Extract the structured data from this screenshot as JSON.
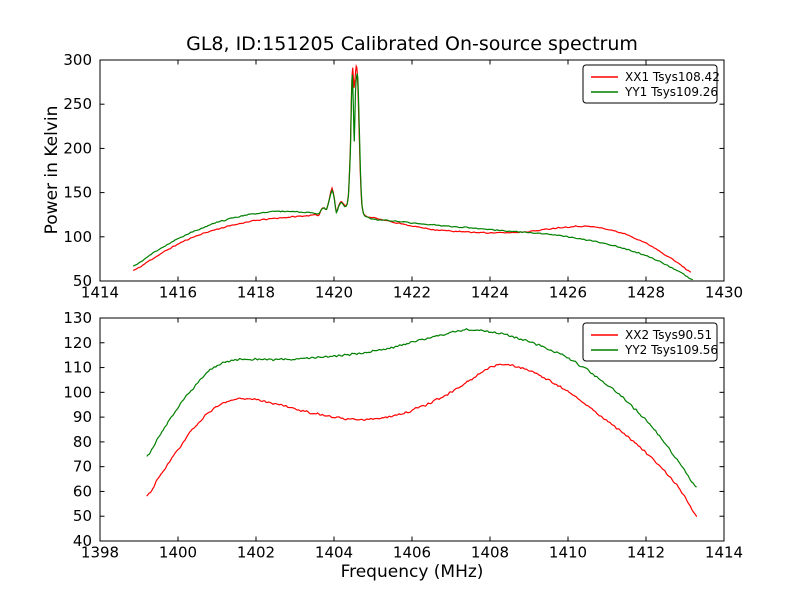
{
  "figure": {
    "background": "#ffffff",
    "axis_color": "#000000"
  },
  "chart_data": [
    {
      "id": "top",
      "type": "line",
      "title": "GL8, ID:151205 Calibrated On-source spectrum",
      "xlabel": "",
      "ylabel": "Power in Kelvin",
      "xlim": [
        1414,
        1430
      ],
      "ylim": [
        50,
        300
      ],
      "xticks": [
        1414,
        1416,
        1418,
        1420,
        1422,
        1424,
        1426,
        1428,
        1430
      ],
      "yticks": [
        50,
        100,
        150,
        200,
        250,
        300
      ],
      "grid": false,
      "legend_position": "upper right",
      "series": [
        {
          "name": "XX1 Tsys108.42",
          "color": "#ff0000",
          "noise": 0.8,
          "points": [
            [
              1414.85,
              62
            ],
            [
              1415.3,
              74
            ],
            [
              1415.8,
              87
            ],
            [
              1416.3,
              98
            ],
            [
              1416.8,
              106
            ],
            [
              1417.3,
              112
            ],
            [
              1417.8,
              117
            ],
            [
              1418.3,
              120
            ],
            [
              1418.8,
              122
            ],
            [
              1419.2,
              123.5
            ],
            [
              1419.5,
              124.5
            ],
            [
              1419.62,
              125
            ],
            [
              1419.68,
              131.5
            ],
            [
              1419.75,
              133
            ],
            [
              1419.81,
              131.5
            ],
            [
              1419.88,
              143
            ],
            [
              1419.95,
              155
            ],
            [
              1420.01,
              143
            ],
            [
              1420.06,
              128
            ],
            [
              1420.12,
              135.5
            ],
            [
              1420.18,
              140
            ],
            [
              1420.24,
              137.5
            ],
            [
              1420.31,
              135.5
            ],
            [
              1420.37,
              148
            ],
            [
              1420.42,
              200
            ],
            [
              1420.45,
              265
            ],
            [
              1420.48,
              291
            ],
            [
              1420.51,
              268
            ],
            [
              1420.54,
              280
            ],
            [
              1420.57,
              293
            ],
            [
              1420.6,
              284
            ],
            [
              1420.63,
              242
            ],
            [
              1420.67,
              178
            ],
            [
              1420.71,
              138
            ],
            [
              1420.76,
              126
            ],
            [
              1420.85,
              123
            ],
            [
              1421,
              121.5
            ],
            [
              1421.3,
              118.5
            ],
            [
              1421.7,
              115
            ],
            [
              1422.1,
              111.5
            ],
            [
              1422.5,
              108.5
            ],
            [
              1423,
              106.5
            ],
            [
              1423.5,
              105.2
            ],
            [
              1424,
              104.6
            ],
            [
              1424.4,
              104.6
            ],
            [
              1424.8,
              105.4
            ],
            [
              1425.2,
              107
            ],
            [
              1425.6,
              109.5
            ],
            [
              1426,
              111.2
            ],
            [
              1426.35,
              112
            ],
            [
              1426.7,
              111
            ],
            [
              1427,
              108.5
            ],
            [
              1427.4,
              104
            ],
            [
              1427.8,
              97
            ],
            [
              1428.2,
              88
            ],
            [
              1428.6,
              77
            ],
            [
              1428.9,
              68
            ],
            [
              1429.15,
              60
            ]
          ]
        },
        {
          "name": "YY1 Tsys109.26",
          "color": "#008000",
          "noise": 0.8,
          "points": [
            [
              1414.85,
              67
            ],
            [
              1415.3,
              80
            ],
            [
              1415.8,
              93
            ],
            [
              1416.3,
              104
            ],
            [
              1416.8,
              113
            ],
            [
              1417.3,
              120
            ],
            [
              1417.8,
              125
            ],
            [
              1418.2,
              127.5
            ],
            [
              1418.6,
              128.8
            ],
            [
              1419,
              128.5
            ],
            [
              1419.4,
              127
            ],
            [
              1419.62,
              126
            ],
            [
              1419.68,
              131
            ],
            [
              1419.75,
              132.5
            ],
            [
              1419.81,
              131
            ],
            [
              1419.88,
              142
            ],
            [
              1419.95,
              152
            ],
            [
              1420.01,
              142
            ],
            [
              1420.06,
              127
            ],
            [
              1420.12,
              134.5
            ],
            [
              1420.18,
              139
            ],
            [
              1420.24,
              136.5
            ],
            [
              1420.31,
              134.5
            ],
            [
              1420.37,
              146
            ],
            [
              1420.42,
              196
            ],
            [
              1420.45,
              258
            ],
            [
              1420.47,
              283
            ],
            [
              1420.5,
              242
            ],
            [
              1420.52,
              208
            ],
            [
              1420.55,
              263
            ],
            [
              1420.58,
              282
            ],
            [
              1420.61,
              280
            ],
            [
              1420.64,
              238
            ],
            [
              1420.68,
              172
            ],
            [
              1420.72,
              135
            ],
            [
              1420.78,
              124
            ],
            [
              1420.9,
              121
            ],
            [
              1421.2,
              119
            ],
            [
              1421.6,
              117.5
            ],
            [
              1422,
              115.8
            ],
            [
              1422.5,
              113.8
            ],
            [
              1423,
              111.8
            ],
            [
              1423.5,
              110
            ],
            [
              1424,
              108.2
            ],
            [
              1424.5,
              106.5
            ],
            [
              1424.8,
              105.5
            ],
            [
              1425.2,
              104
            ],
            [
              1425.6,
              102.2
            ],
            [
              1426,
              99.8
            ],
            [
              1426.5,
              96.3
            ],
            [
              1427,
              91.8
            ],
            [
              1427.5,
              86
            ],
            [
              1428,
              78.5
            ],
            [
              1428.5,
              69
            ],
            [
              1428.9,
              59.5
            ],
            [
              1429.2,
              51.5
            ]
          ]
        }
      ]
    },
    {
      "id": "bottom",
      "type": "line",
      "title": "",
      "xlabel": "Frequency (MHz)",
      "ylabel": "",
      "xlim": [
        1398,
        1414
      ],
      "ylim": [
        40,
        130
      ],
      "xticks": [
        1398,
        1400,
        1402,
        1404,
        1406,
        1408,
        1410,
        1412,
        1414
      ],
      "yticks": [
        40,
        50,
        60,
        70,
        80,
        90,
        100,
        110,
        120,
        130
      ],
      "grid": false,
      "legend_position": "upper right",
      "series": [
        {
          "name": "XX2 Tsys90.51",
          "color": "#ff0000",
          "noise": 0.55,
          "points": [
            [
              1399.2,
              58
            ],
            [
              1399.5,
              65.5
            ],
            [
              1399.9,
              74.5
            ],
            [
              1400.3,
              83.5
            ],
            [
              1400.7,
              90.5
            ],
            [
              1401.1,
              95
            ],
            [
              1401.5,
              97.2
            ],
            [
              1401.8,
              97.4
            ],
            [
              1402.1,
              96.8
            ],
            [
              1402.5,
              95.4
            ],
            [
              1402.9,
              93.8
            ],
            [
              1403.3,
              92.2
            ],
            [
              1403.7,
              90.8
            ],
            [
              1404.1,
              89.8
            ],
            [
              1404.5,
              89.2
            ],
            [
              1404.9,
              89.2
            ],
            [
              1405.3,
              89.9
            ],
            [
              1405.7,
              91.2
            ],
            [
              1406.1,
              93.4
            ],
            [
              1406.6,
              96.8
            ],
            [
              1407.1,
              101
            ],
            [
              1407.6,
              106
            ],
            [
              1408,
              110
            ],
            [
              1408.3,
              111.3
            ],
            [
              1408.6,
              110.8
            ],
            [
              1409,
              108.8
            ],
            [
              1409.4,
              105.8
            ],
            [
              1409.9,
              101.2
            ],
            [
              1410.4,
              95.8
            ],
            [
              1410.9,
              89.8
            ],
            [
              1411.4,
              83.8
            ],
            [
              1411.9,
              77
            ],
            [
              1412.4,
              69.8
            ],
            [
              1412.8,
              62.5
            ],
            [
              1413.05,
              56.5
            ],
            [
              1413.3,
              49.8
            ]
          ]
        },
        {
          "name": "YY2 Tsys109.56",
          "color": "#008000",
          "noise": 0.55,
          "points": [
            [
              1399.2,
              74
            ],
            [
              1399.5,
              82
            ],
            [
              1399.9,
              91.5
            ],
            [
              1400.3,
              100
            ],
            [
              1400.7,
              107
            ],
            [
              1401,
              110.8
            ],
            [
              1401.3,
              112.6
            ],
            [
              1401.7,
              113.3
            ],
            [
              1402.1,
              113.5
            ],
            [
              1402.5,
              113.2
            ],
            [
              1402.9,
              113.3
            ],
            [
              1403.4,
              113.8
            ],
            [
              1403.9,
              114.4
            ],
            [
              1404.4,
              115.2
            ],
            [
              1404.9,
              116.3
            ],
            [
              1405.4,
              117.8
            ],
            [
              1405.9,
              119.8
            ],
            [
              1406.4,
              121.9
            ],
            [
              1406.9,
              123.8
            ],
            [
              1407.3,
              125.2
            ],
            [
              1407.7,
              125.1
            ],
            [
              1408.1,
              124.2
            ],
            [
              1408.5,
              122.9
            ],
            [
              1409,
              120.6
            ],
            [
              1409.5,
              117.5
            ],
            [
              1410,
              113.8
            ],
            [
              1410.5,
              109
            ],
            [
              1411,
              103.2
            ],
            [
              1411.5,
              96.5
            ],
            [
              1412,
              88.8
            ],
            [
              1412.4,
              81.2
            ],
            [
              1412.8,
              72.8
            ],
            [
              1413.05,
              67
            ],
            [
              1413.3,
              61.8
            ]
          ]
        }
      ]
    }
  ]
}
